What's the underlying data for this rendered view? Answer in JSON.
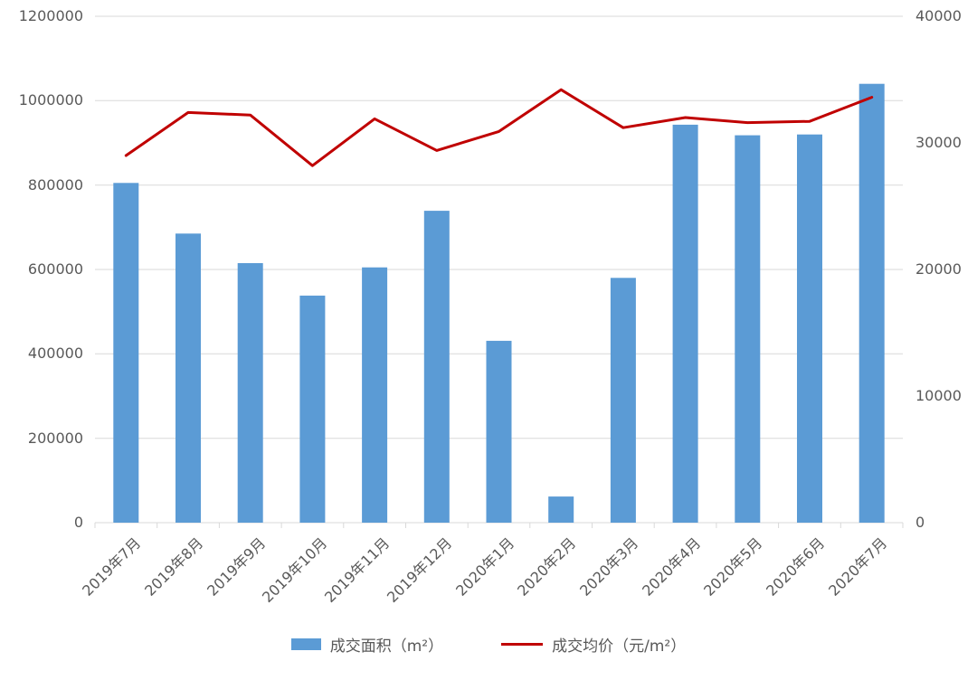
{
  "chart_data": {
    "type": "combo",
    "title": "",
    "categories": [
      "2019年7月",
      "2019年8月",
      "2019年9月",
      "2019年10月",
      "2019年11月",
      "2019年12月",
      "2020年1月",
      "2020年2月",
      "2020年3月",
      "2020年4月",
      "2020年5月",
      "2020年6月",
      "2020年7月"
    ],
    "series": [
      {
        "name": "成交面积（m²）",
        "type": "bar",
        "axis": "left",
        "color": "#5B9BD5",
        "values": [
          805000,
          685000,
          615000,
          538000,
          605000,
          739000,
          431000,
          62000,
          580000,
          943000,
          918000,
          920000,
          1040000
        ]
      },
      {
        "name": "成交均价（元/m²）",
        "type": "line",
        "axis": "right",
        "color": "#C00000",
        "values": [
          29000,
          32400,
          32200,
          28200,
          31900,
          29400,
          30900,
          34200,
          31200,
          32000,
          31600,
          31700,
          33600
        ]
      }
    ],
    "left_axis": {
      "min": 0,
      "max": 1200000,
      "step": 200000,
      "ticks": [
        "0",
        "200000",
        "400000",
        "600000",
        "800000",
        "1000000",
        "1200000"
      ]
    },
    "right_axis": {
      "min": 0,
      "max": 40000,
      "step": 10000,
      "ticks": [
        "0",
        "10000",
        "20000",
        "30000",
        "40000"
      ]
    },
    "grid": true,
    "legend_position": "bottom",
    "legend": [
      {
        "label": "成交面积（m²）",
        "type": "bar",
        "color": "#5B9BD5"
      },
      {
        "label": "成交均价（元/m²）",
        "type": "line",
        "color": "#C00000"
      }
    ],
    "colors": {
      "gridline": "#D9D9D9",
      "axis_text": "#595959",
      "background": "#FFFFFF"
    }
  }
}
